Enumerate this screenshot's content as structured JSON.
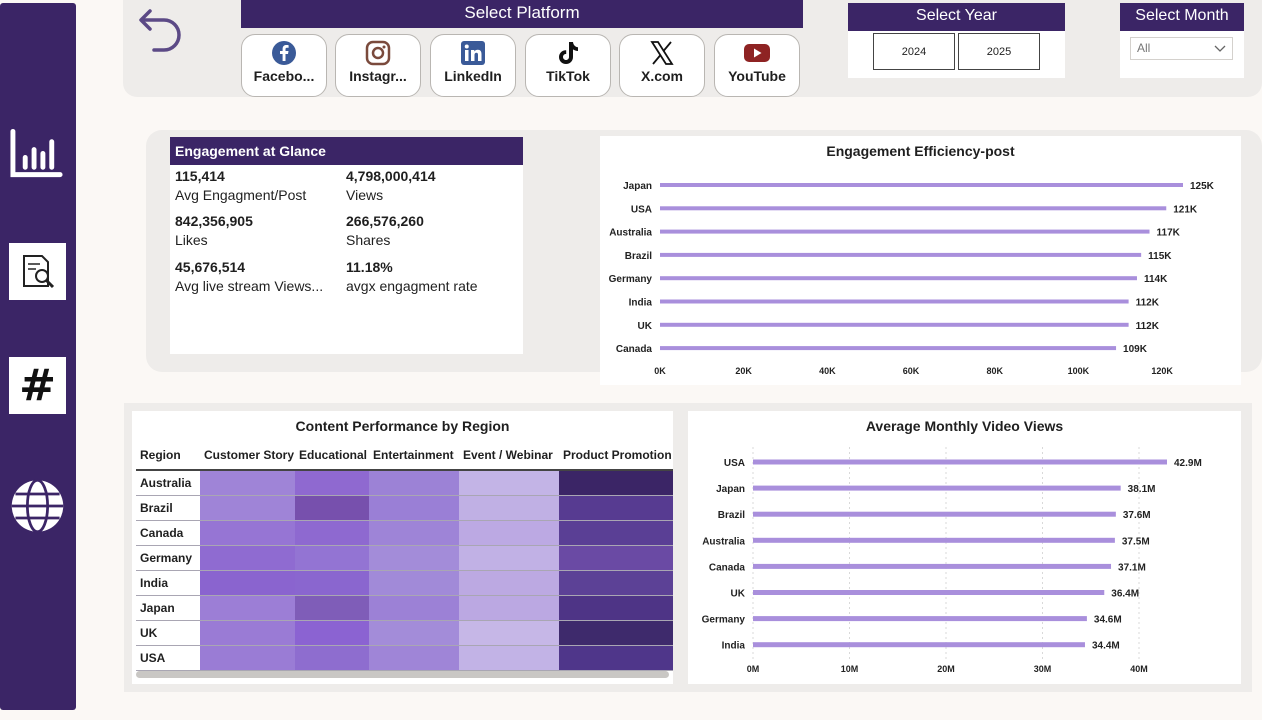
{
  "sidebar": {
    "items": [
      {
        "icon": "bar-chart-icon"
      },
      {
        "icon": "document-search-icon"
      },
      {
        "icon": "hashtag-icon",
        "glyph": "#"
      },
      {
        "icon": "globe-icon"
      }
    ]
  },
  "topbar": {
    "back_icon": "undo-arrow-icon",
    "platform_title": "Select Platform",
    "platforms": [
      {
        "label": "Facebo...",
        "icon": "facebook-icon",
        "color": "#3a5a98"
      },
      {
        "label": "Instagr...",
        "icon": "instagram-icon",
        "color": "#7a4a3c"
      },
      {
        "label": "LinkedIn",
        "icon": "linkedin-icon",
        "color": "#3a5a98"
      },
      {
        "label": "TikTok",
        "icon": "tiktok-icon",
        "color": "#111111"
      },
      {
        "label": "X.com",
        "icon": "x-icon",
        "color": "#111111"
      },
      {
        "label": "YouTube",
        "icon": "youtube-icon",
        "color": "#8e2323"
      }
    ],
    "year_title": "Select Year",
    "years": [
      "2024",
      "2025"
    ],
    "month_title": "Select Month",
    "month_value": "All"
  },
  "glance": {
    "title": "Engagement at Glance",
    "metrics": [
      {
        "value": "115,414",
        "label": "Avg Engagment/Post"
      },
      {
        "value": "4,798,000,414",
        "label": "Views"
      },
      {
        "value": "842,356,905",
        "label": "Likes"
      },
      {
        "value": "266,576,260",
        "label": "Shares"
      },
      {
        "value": "45,676,514",
        "label": "Avg live stream Views..."
      },
      {
        "value": "11.18%",
        "label": "avgx engagment rate"
      }
    ]
  },
  "colors": {
    "brand": "#3b2566",
    "bar": "#a98fdc",
    "panel": "#eeecea"
  },
  "chart_data": [
    {
      "type": "bar",
      "orientation": "horizontal",
      "title": "Engagement Efficiency-post",
      "categories": [
        "Japan",
        "USA",
        "Australia",
        "Brazil",
        "Germany",
        "India",
        "UK",
        "Canada"
      ],
      "values": [
        125000,
        121000,
        117000,
        115000,
        114000,
        112000,
        112000,
        109000
      ],
      "data_labels": [
        "125K",
        "121K",
        "117K",
        "115K",
        "114K",
        "112K",
        "112K",
        "109K"
      ],
      "xlim": [
        0,
        125000
      ],
      "xticks": [
        0,
        20000,
        40000,
        60000,
        80000,
        100000,
        120000
      ],
      "xtick_labels": [
        "0K",
        "20K",
        "40K",
        "60K",
        "80K",
        "100K",
        "120K"
      ],
      "grid": false
    },
    {
      "type": "heatmap",
      "title": "Content Performance by Region",
      "row_header": "Region",
      "columns": [
        "Customer Story",
        "Educational",
        "Entertainment",
        "Event / Webinar",
        "Product Promotion"
      ],
      "rows": [
        "Australia",
        "Brazil",
        "Canada",
        "Germany",
        "India",
        "Japan",
        "UK",
        "USA"
      ],
      "colors": [
        [
          "#9f84d7",
          "#8f69d0",
          "#9c82d6",
          "#c3b4e6",
          "#3b2566"
        ],
        [
          "#9f84d7",
          "#7750ad",
          "#9a7fd6",
          "#c0b0e4",
          "#573b91"
        ],
        [
          "#9675d4",
          "#8e69d0",
          "#9e84d7",
          "#bca9e3",
          "#5a3f95"
        ],
        [
          "#8f6bd1",
          "#9374d3",
          "#a38cd9",
          "#c1b1e5",
          "#6a4aa4"
        ],
        [
          "#8a64cf",
          "#8a66cf",
          "#a18ad8",
          "#bca9e2",
          "#5c4196"
        ],
        [
          "#9c7ed6",
          "#7f5db8",
          "#9c81d6",
          "#bba8e2",
          "#4e3486"
        ],
        [
          "#9a7bd5",
          "#8b63d2",
          "#a38cd9",
          "#c6b7e7",
          "#3e2a6c"
        ],
        [
          "#9a7cd5",
          "#8e6dcf",
          "#9f85d7",
          "#c2b3e6",
          "#4f368a"
        ]
      ]
    },
    {
      "type": "bar",
      "orientation": "horizontal",
      "title": "Average Monthly Video Views",
      "categories": [
        "USA",
        "Japan",
        "Brazil",
        "Australia",
        "Canada",
        "UK",
        "Germany",
        "India"
      ],
      "values": [
        42900000,
        38100000,
        37600000,
        37500000,
        37100000,
        36400000,
        34600000,
        34400000
      ],
      "data_labels": [
        "42.9M",
        "38.1M",
        "37.6M",
        "37.5M",
        "37.1M",
        "36.4M",
        "34.6M",
        "34.4M"
      ],
      "xlim": [
        0,
        42900000
      ],
      "xticks": [
        0,
        10000000,
        20000000,
        30000000,
        40000000
      ],
      "xtick_labels": [
        "0M",
        "10M",
        "20M",
        "30M",
        "40M"
      ],
      "grid": true
    }
  ]
}
